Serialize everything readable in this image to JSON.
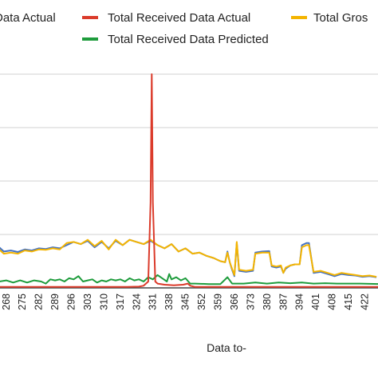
{
  "chart_data": {
    "type": "line",
    "title": "",
    "xlabel": "Data to-",
    "ylabel": "",
    "grid": true,
    "legend_position": "top",
    "x_start": 265,
    "x_end": 428,
    "categories": [
      "268",
      "275",
      "282",
      "289",
      "296",
      "303",
      "310",
      "317",
      "324",
      "331",
      "338",
      "345",
      "352",
      "359",
      "366",
      "373",
      "380",
      "387",
      "394",
      "401",
      "408",
      "415",
      "422"
    ],
    "legend": [
      {
        "label": "Data Actual",
        "color": "#4472c4"
      },
      {
        "label": "Total Received Data Actual",
        "color": "#db3b2b"
      },
      {
        "label": "Total Gros",
        "color": "#f4b400"
      },
      {
        "label": "Total Received Data Predicted",
        "color": "#1e9c3c"
      }
    ],
    "series": [
      {
        "name": "Data Actual",
        "color": "#4472c4",
        "points": [
          [
            265,
            0.19
          ],
          [
            267,
            0.17
          ],
          [
            270,
            0.175
          ],
          [
            273,
            0.168
          ],
          [
            276,
            0.18
          ],
          [
            279,
            0.175
          ],
          [
            282,
            0.185
          ],
          [
            285,
            0.182
          ],
          [
            288,
            0.19
          ],
          [
            291,
            0.185
          ],
          [
            294,
            0.2
          ],
          [
            297,
            0.215
          ],
          [
            300,
            0.205
          ],
          [
            303,
            0.22
          ],
          [
            306,
            0.19
          ],
          [
            309,
            0.215
          ],
          [
            312,
            0.185
          ],
          [
            315,
            0.22
          ],
          [
            318,
            0.2
          ],
          [
            321,
            0.225
          ],
          [
            324,
            0.215
          ],
          [
            327,
            0.205
          ],
          [
            330,
            0.22
          ],
          [
            333,
            0.2
          ],
          [
            336,
            0.185
          ],
          [
            339,
            0.205
          ],
          [
            342,
            0.17
          ],
          [
            345,
            0.185
          ],
          [
            348,
            0.16
          ],
          [
            351,
            0.165
          ],
          [
            354,
            0.15
          ],
          [
            357,
            0.14
          ],
          [
            360,
            0.125
          ],
          [
            362,
            0.12
          ],
          [
            363,
            0.17
          ],
          [
            364,
            0.12
          ],
          [
            365,
            0.085
          ],
          [
            366,
            0.055
          ],
          [
            367,
            0.21
          ],
          [
            368,
            0.08
          ],
          [
            371,
            0.075
          ],
          [
            374,
            0.08
          ],
          [
            375,
            0.165
          ],
          [
            378,
            0.17
          ],
          [
            381,
            0.172
          ],
          [
            382,
            0.1
          ],
          [
            384,
            0.095
          ],
          [
            386,
            0.1
          ],
          [
            387,
            0.07
          ],
          [
            388,
            0.09
          ],
          [
            390,
            0.105
          ],
          [
            392,
            0.11
          ],
          [
            394,
            0.11
          ],
          [
            395,
            0.2
          ],
          [
            397,
            0.21
          ],
          [
            398,
            0.21
          ],
          [
            400,
            0.07
          ],
          [
            403,
            0.075
          ],
          [
            406,
            0.065
          ],
          [
            409,
            0.055
          ],
          [
            412,
            0.065
          ],
          [
            415,
            0.06
          ],
          [
            418,
            0.058
          ],
          [
            421,
            0.052
          ],
          [
            424,
            0.055
          ],
          [
            427,
            0.05
          ]
        ]
      },
      {
        "name": "Total Received Data Actual",
        "color": "#db3b2b",
        "points": [
          [
            265,
            0.005
          ],
          [
            270,
            0.005
          ],
          [
            280,
            0.005
          ],
          [
            290,
            0.005
          ],
          [
            300,
            0.005
          ],
          [
            310,
            0.005
          ],
          [
            320,
            0.005
          ],
          [
            325,
            0.006
          ],
          [
            327,
            0.01
          ],
          [
            329,
            0.03
          ],
          [
            330,
            0.4
          ],
          [
            330.5,
            1.0
          ],
          [
            331,
            0.4
          ],
          [
            332,
            0.03
          ],
          [
            333,
            0.02
          ],
          [
            336,
            0.015
          ],
          [
            340,
            0.012
          ],
          [
            344,
            0.015
          ],
          [
            346,
            0.02
          ],
          [
            347,
            0.01
          ],
          [
            349,
            0.005
          ],
          [
            360,
            0.005
          ],
          [
            380,
            0.005
          ],
          [
            400,
            0.005
          ],
          [
            428,
            0.005
          ]
        ]
      },
      {
        "name": "Total Gros",
        "color": "#f4b400",
        "points": [
          [
            265,
            0.18
          ],
          [
            267,
            0.16
          ],
          [
            270,
            0.165
          ],
          [
            273,
            0.16
          ],
          [
            276,
            0.175
          ],
          [
            279,
            0.17
          ],
          [
            282,
            0.18
          ],
          [
            285,
            0.178
          ],
          [
            288,
            0.185
          ],
          [
            291,
            0.18
          ],
          [
            294,
            0.21
          ],
          [
            297,
            0.215
          ],
          [
            300,
            0.205
          ],
          [
            303,
            0.225
          ],
          [
            306,
            0.195
          ],
          [
            309,
            0.22
          ],
          [
            312,
            0.18
          ],
          [
            315,
            0.225
          ],
          [
            318,
            0.2
          ],
          [
            321,
            0.225
          ],
          [
            324,
            0.215
          ],
          [
            327,
            0.205
          ],
          [
            330,
            0.225
          ],
          [
            333,
            0.2
          ],
          [
            336,
            0.185
          ],
          [
            339,
            0.205
          ],
          [
            342,
            0.17
          ],
          [
            345,
            0.185
          ],
          [
            348,
            0.16
          ],
          [
            351,
            0.165
          ],
          [
            354,
            0.15
          ],
          [
            357,
            0.14
          ],
          [
            360,
            0.125
          ],
          [
            362,
            0.12
          ],
          [
            363,
            0.165
          ],
          [
            364,
            0.12
          ],
          [
            365,
            0.09
          ],
          [
            366,
            0.06
          ],
          [
            367,
            0.215
          ],
          [
            368,
            0.085
          ],
          [
            371,
            0.08
          ],
          [
            374,
            0.085
          ],
          [
            375,
            0.16
          ],
          [
            378,
            0.165
          ],
          [
            381,
            0.165
          ],
          [
            382,
            0.105
          ],
          [
            384,
            0.1
          ],
          [
            386,
            0.105
          ],
          [
            387,
            0.07
          ],
          [
            388,
            0.095
          ],
          [
            390,
            0.105
          ],
          [
            392,
            0.11
          ],
          [
            394,
            0.11
          ],
          [
            395,
            0.19
          ],
          [
            397,
            0.2
          ],
          [
            398,
            0.2
          ],
          [
            400,
            0.075
          ],
          [
            403,
            0.08
          ],
          [
            406,
            0.07
          ],
          [
            409,
            0.06
          ],
          [
            412,
            0.07
          ],
          [
            415,
            0.065
          ],
          [
            418,
            0.06
          ],
          [
            421,
            0.055
          ],
          [
            424,
            0.058
          ],
          [
            427,
            0.052
          ]
        ]
      },
      {
        "name": "Total Received Data Predicted",
        "color": "#1e9c3c",
        "points": [
          [
            265,
            0.03
          ],
          [
            268,
            0.035
          ],
          [
            271,
            0.025
          ],
          [
            274,
            0.035
          ],
          [
            277,
            0.025
          ],
          [
            280,
            0.035
          ],
          [
            283,
            0.03
          ],
          [
            285,
            0.02
          ],
          [
            287,
            0.04
          ],
          [
            289,
            0.035
          ],
          [
            291,
            0.04
          ],
          [
            293,
            0.03
          ],
          [
            295,
            0.045
          ],
          [
            297,
            0.04
          ],
          [
            299,
            0.055
          ],
          [
            301,
            0.03
          ],
          [
            303,
            0.035
          ],
          [
            305,
            0.04
          ],
          [
            307,
            0.025
          ],
          [
            309,
            0.035
          ],
          [
            311,
            0.03
          ],
          [
            313,
            0.04
          ],
          [
            315,
            0.035
          ],
          [
            317,
            0.04
          ],
          [
            319,
            0.03
          ],
          [
            321,
            0.045
          ],
          [
            323,
            0.035
          ],
          [
            325,
            0.04
          ],
          [
            327,
            0.03
          ],
          [
            329,
            0.05
          ],
          [
            331,
            0.04
          ],
          [
            333,
            0.06
          ],
          [
            335,
            0.045
          ],
          [
            337,
            0.03
          ],
          [
            338,
            0.065
          ],
          [
            339,
            0.04
          ],
          [
            341,
            0.05
          ],
          [
            343,
            0.035
          ],
          [
            345,
            0.045
          ],
          [
            347,
            0.02
          ],
          [
            349,
            0.02
          ],
          [
            355,
            0.018
          ],
          [
            360,
            0.018
          ],
          [
            363,
            0.05
          ],
          [
            365,
            0.02
          ],
          [
            370,
            0.02
          ],
          [
            375,
            0.025
          ],
          [
            380,
            0.02
          ],
          [
            385,
            0.025
          ],
          [
            390,
            0.022
          ],
          [
            395,
            0.025
          ],
          [
            400,
            0.02
          ],
          [
            405,
            0.022
          ],
          [
            410,
            0.02
          ],
          [
            415,
            0.02
          ],
          [
            420,
            0.02
          ],
          [
            428,
            0.018
          ]
        ]
      }
    ]
  }
}
